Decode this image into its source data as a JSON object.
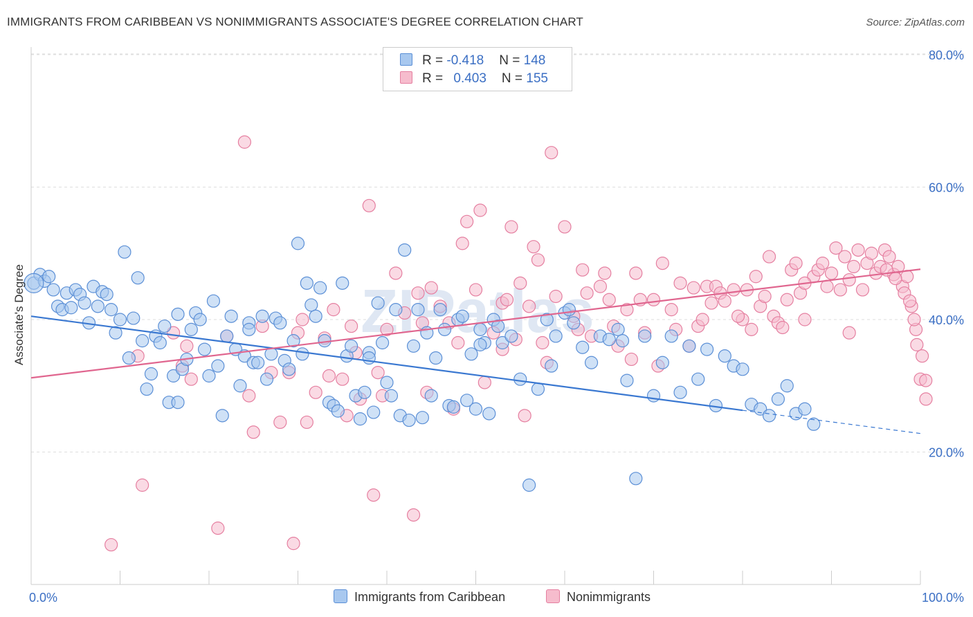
{
  "title": "IMMIGRANTS FROM CARIBBEAN VS NONIMMIGRANTS ASSOCIATE'S DEGREE CORRELATION CHART",
  "source": "Source: ZipAtlas.com",
  "watermark": "ZIPatlas",
  "legend": {
    "series1": {
      "r_label": "R = ",
      "r_value": "-0.418",
      "n_label": "N = ",
      "n_value": "148"
    },
    "series2": {
      "r_label": "R = ",
      "r_value": "0.403",
      "n_label": "N = ",
      "n_value": "155"
    }
  },
  "colors": {
    "series1_fill": "#a8c8ef",
    "series1_stroke": "#5b8fd6",
    "series1_line": "#3a78d1",
    "series2_fill": "#f6bccd",
    "series2_stroke": "#e57fa0",
    "series2_line": "#e0668f",
    "tick_label": "#3b6fc4",
    "grid": "#dddddd"
  },
  "chart_data": {
    "type": "scatter",
    "title": "IMMIGRANTS FROM CARIBBEAN VS NONIMMIGRANTS ASSOCIATE'S DEGREE CORRELATION CHART",
    "xlabel": "",
    "ylabel": "Associate's Degree",
    "xlim": [
      0,
      100
    ],
    "ylim": [
      0,
      82
    ],
    "x_tick_labels": [
      "0.0%",
      "100.0%"
    ],
    "y_ticks": [
      20,
      40,
      60,
      80
    ],
    "y_tick_labels": [
      "20.0%",
      "40.0%",
      "60.0%",
      "80.0%"
    ],
    "grid": true,
    "legend_position": "bottom",
    "series": [
      {
        "name": "Immigrants from Caribbean",
        "trend": {
          "x0": 0,
          "y0": 40.5,
          "x1": 80,
          "y1": 26.3,
          "dashed_to_x": 100,
          "dashed_to_y": 22.8
        },
        "points": [
          [
            0.3,
            45.5
          ],
          [
            1,
            46.8
          ],
          [
            1.5,
            45.8
          ],
          [
            2,
            46.5
          ],
          [
            2.5,
            44.5
          ],
          [
            3,
            42
          ],
          [
            3.5,
            41.5
          ],
          [
            4,
            44
          ],
          [
            4.5,
            41.8
          ],
          [
            5,
            44.5
          ],
          [
            5.5,
            43.8
          ],
          [
            6,
            42.5
          ],
          [
            6.5,
            39.5
          ],
          [
            7,
            45
          ],
          [
            7.5,
            42
          ],
          [
            8,
            44.2
          ],
          [
            8.5,
            43.8
          ],
          [
            9,
            41.5
          ],
          [
            9.5,
            38
          ],
          [
            10,
            40
          ],
          [
            10.5,
            50.2
          ],
          [
            11,
            34.2
          ],
          [
            11.5,
            40.2
          ],
          [
            12,
            46.3
          ],
          [
            12.5,
            36.8
          ],
          [
            13,
            29.5
          ],
          [
            13.5,
            31.8
          ],
          [
            14,
            37.5
          ],
          [
            14.5,
            36.5
          ],
          [
            15,
            39
          ],
          [
            15.5,
            27.5
          ],
          [
            16,
            31.5
          ],
          [
            16.5,
            27.5
          ],
          [
            17,
            32.5
          ],
          [
            17.5,
            34
          ],
          [
            18,
            38.5
          ],
          [
            18.5,
            41
          ],
          [
            19,
            40
          ],
          [
            19.5,
            35.5
          ],
          [
            20,
            31.5
          ],
          [
            20.5,
            42.8
          ],
          [
            21,
            33
          ],
          [
            21.5,
            25.5
          ],
          [
            22,
            37.5
          ],
          [
            22.5,
            40.5
          ],
          [
            23,
            35.5
          ],
          [
            23.5,
            30
          ],
          [
            24,
            34.5
          ],
          [
            24.5,
            39.5
          ],
          [
            25,
            33.5
          ],
          [
            25.5,
            33.5
          ],
          [
            26,
            40.5
          ],
          [
            26.5,
            31
          ],
          [
            27,
            34.8
          ],
          [
            27.5,
            40.2
          ],
          [
            28,
            39.5
          ],
          [
            28.5,
            33.8
          ],
          [
            29,
            32.5
          ],
          [
            29.5,
            36.8
          ],
          [
            30,
            51.5
          ],
          [
            30.5,
            34.8
          ],
          [
            31,
            45.5
          ],
          [
            31.5,
            42.2
          ],
          [
            32,
            40.5
          ],
          [
            32.5,
            44.8
          ],
          [
            33,
            36.8
          ],
          [
            33.5,
            27.5
          ],
          [
            34,
            27
          ],
          [
            34.5,
            26.2
          ],
          [
            35,
            45.5
          ],
          [
            35.5,
            34.5
          ],
          [
            36,
            36
          ],
          [
            36.5,
            28.5
          ],
          [
            37,
            25
          ],
          [
            37.5,
            29
          ],
          [
            38,
            35
          ],
          [
            38.5,
            26
          ],
          [
            39,
            42.5
          ],
          [
            39.5,
            36.5
          ],
          [
            40,
            30.5
          ],
          [
            40.5,
            28.5
          ],
          [
            41,
            41.5
          ],
          [
            41.5,
            25.5
          ],
          [
            42,
            50.5
          ],
          [
            42.5,
            24.8
          ],
          [
            43,
            36
          ],
          [
            43.5,
            41.5
          ],
          [
            44,
            25.2
          ],
          [
            44.5,
            38
          ],
          [
            45,
            28.5
          ],
          [
            45.5,
            34.2
          ],
          [
            46,
            41.5
          ],
          [
            46.5,
            38.5
          ],
          [
            47,
            27
          ],
          [
            47.5,
            26.8
          ],
          [
            48,
            40
          ],
          [
            48.5,
            40.5
          ],
          [
            49,
            27.8
          ],
          [
            49.5,
            34.8
          ],
          [
            50,
            26.5
          ],
          [
            50.5,
            38.5
          ],
          [
            51,
            36.5
          ],
          [
            51.5,
            25.8
          ],
          [
            52,
            40
          ],
          [
            52.5,
            39
          ],
          [
            53,
            36.5
          ],
          [
            54,
            37.5
          ],
          [
            55,
            31
          ],
          [
            56,
            15
          ],
          [
            57,
            29.5
          ],
          [
            58,
            40
          ],
          [
            58.5,
            33
          ],
          [
            59,
            37.5
          ],
          [
            60,
            41
          ],
          [
            60.5,
            41.5
          ],
          [
            61,
            39.5
          ],
          [
            62,
            35.8
          ],
          [
            63,
            33.5
          ],
          [
            64,
            37.5
          ],
          [
            65,
            37
          ],
          [
            66,
            38.5
          ],
          [
            66.5,
            36.8
          ],
          [
            67,
            30.8
          ],
          [
            68,
            16
          ],
          [
            69,
            37.5
          ],
          [
            70,
            28.5
          ],
          [
            71,
            33.5
          ],
          [
            72,
            37.5
          ],
          [
            73,
            29
          ],
          [
            74,
            36
          ],
          [
            75,
            31
          ],
          [
            76,
            35.5
          ],
          [
            77,
            27
          ],
          [
            78,
            34.5
          ],
          [
            79,
            33
          ],
          [
            80,
            32.5
          ],
          [
            81,
            27.2
          ],
          [
            82,
            26.5
          ],
          [
            83,
            25.5
          ],
          [
            84,
            28
          ],
          [
            85,
            30
          ],
          [
            86,
            25.8
          ],
          [
            87,
            26.5
          ],
          [
            88,
            24.2
          ],
          [
            50.5,
            36.2
          ],
          [
            38,
            34.2
          ],
          [
            24.5,
            38.5
          ],
          [
            16.5,
            40.8
          ]
        ]
      },
      {
        "name": "Nonimmigrants",
        "trend": {
          "x0": 0,
          "y0": 31.2,
          "x1": 100,
          "y1": 47.6
        },
        "points": [
          [
            9,
            6
          ],
          [
            12,
            34.5
          ],
          [
            12.5,
            15
          ],
          [
            16,
            38
          ],
          [
            17,
            33
          ],
          [
            17.5,
            36
          ],
          [
            18,
            31
          ],
          [
            21,
            8.5
          ],
          [
            22,
            37.5
          ],
          [
            24.5,
            28.5
          ],
          [
            24,
            66.8
          ],
          [
            25,
            23
          ],
          [
            26,
            39
          ],
          [
            27,
            32
          ],
          [
            28,
            24.5
          ],
          [
            29,
            32
          ],
          [
            29.5,
            6.2
          ],
          [
            30,
            38
          ],
          [
            31,
            24.5
          ],
          [
            32,
            29
          ],
          [
            33,
            37.2
          ],
          [
            34,
            41.5
          ],
          [
            35,
            31
          ],
          [
            35.5,
            25.5
          ],
          [
            36,
            39
          ],
          [
            37,
            28
          ],
          [
            38,
            57.2
          ],
          [
            38.5,
            13.5
          ],
          [
            39,
            32
          ],
          [
            40,
            38.5
          ],
          [
            41,
            47
          ],
          [
            42,
            41
          ],
          [
            43,
            10.5
          ],
          [
            44,
            39.5
          ],
          [
            44.5,
            29
          ],
          [
            45,
            44.8
          ],
          [
            46,
            42
          ],
          [
            47,
            39.5
          ],
          [
            48,
            36.5
          ],
          [
            48.5,
            51.5
          ],
          [
            49,
            54.8
          ],
          [
            50,
            44.5
          ],
          [
            50.5,
            56.5
          ],
          [
            51,
            30.5
          ],
          [
            52,
            38
          ],
          [
            53,
            42.5
          ],
          [
            53.5,
            43
          ],
          [
            54,
            54
          ],
          [
            54.5,
            37
          ],
          [
            55,
            45.5
          ],
          [
            55.5,
            25.5
          ],
          [
            56,
            42
          ],
          [
            56.5,
            51
          ],
          [
            57,
            49
          ],
          [
            58,
            33.5
          ],
          [
            58.5,
            65.2
          ],
          [
            59,
            43.5
          ],
          [
            60,
            54
          ],
          [
            61,
            40.5
          ],
          [
            62,
            47.5
          ],
          [
            62.5,
            44
          ],
          [
            63,
            37.5
          ],
          [
            64,
            45
          ],
          [
            64.5,
            47
          ],
          [
            65,
            43
          ],
          [
            66,
            36
          ],
          [
            67,
            41.5
          ],
          [
            67.5,
            34
          ],
          [
            68,
            47
          ],
          [
            69,
            38
          ],
          [
            70,
            43
          ],
          [
            70.5,
            33
          ],
          [
            71,
            48.5
          ],
          [
            72,
            41.5
          ],
          [
            73,
            45.5
          ],
          [
            74,
            36
          ],
          [
            75,
            39
          ],
          [
            75.5,
            40
          ],
          [
            76,
            45
          ],
          [
            76.5,
            42.5
          ],
          [
            77,
            45
          ],
          [
            77.5,
            44
          ],
          [
            78,
            42.8
          ],
          [
            79,
            44.5
          ],
          [
            80,
            40
          ],
          [
            80.5,
            44.5
          ],
          [
            81,
            38.5
          ],
          [
            82,
            42
          ],
          [
            82.5,
            43.5
          ],
          [
            83,
            49.5
          ],
          [
            83.5,
            40.5
          ],
          [
            84,
            39.5
          ],
          [
            85,
            43
          ],
          [
            85.5,
            47.5
          ],
          [
            86,
            48.5
          ],
          [
            86.5,
            44
          ],
          [
            87,
            40
          ],
          [
            88,
            46.5
          ],
          [
            88.5,
            47.5
          ],
          [
            89,
            48.5
          ],
          [
            89.5,
            45
          ],
          [
            90,
            47
          ],
          [
            90.5,
            50.8
          ],
          [
            91,
            44.5
          ],
          [
            91.5,
            49.5
          ],
          [
            92,
            46
          ],
          [
            92.5,
            48
          ],
          [
            93,
            50.5
          ],
          [
            93.5,
            44.5
          ],
          [
            94,
            48.5
          ],
          [
            94.5,
            50
          ],
          [
            95,
            47
          ],
          [
            95.5,
            48
          ],
          [
            96,
            50.5
          ],
          [
            96.5,
            49.5
          ],
          [
            97,
            46.8
          ],
          [
            97.5,
            48
          ],
          [
            98,
            45
          ],
          [
            98.5,
            46.5
          ],
          [
            99,
            42
          ],
          [
            99.5,
            38.5
          ],
          [
            100,
            31
          ],
          [
            92,
            38
          ],
          [
            87,
            45.5
          ],
          [
            84.5,
            38.8
          ],
          [
            81.5,
            46.5
          ],
          [
            79.5,
            40.5
          ],
          [
            74.5,
            44.8
          ],
          [
            72.5,
            38.5
          ],
          [
            68.5,
            43
          ],
          [
            65.5,
            39
          ],
          [
            61.5,
            38.5
          ],
          [
            57.5,
            36.5
          ],
          [
            53,
            35.5
          ],
          [
            47.5,
            26.5
          ],
          [
            43.5,
            44
          ],
          [
            39.5,
            28.5
          ],
          [
            36.5,
            35
          ],
          [
            33.5,
            31.5
          ],
          [
            30.5,
            40
          ],
          [
            96.2,
            47.5
          ],
          [
            97.2,
            46.2
          ],
          [
            98.2,
            44
          ],
          [
            98.8,
            42.8
          ],
          [
            99.3,
            40
          ],
          [
            99.6,
            36.2
          ],
          [
            100.2,
            34.5
          ],
          [
            100.6,
            30.8
          ],
          [
            101,
            28
          ]
        ]
      }
    ]
  },
  "bottom_legend": {
    "series1": "Immigrants from Caribbean",
    "series2": "Nonimmigrants"
  }
}
